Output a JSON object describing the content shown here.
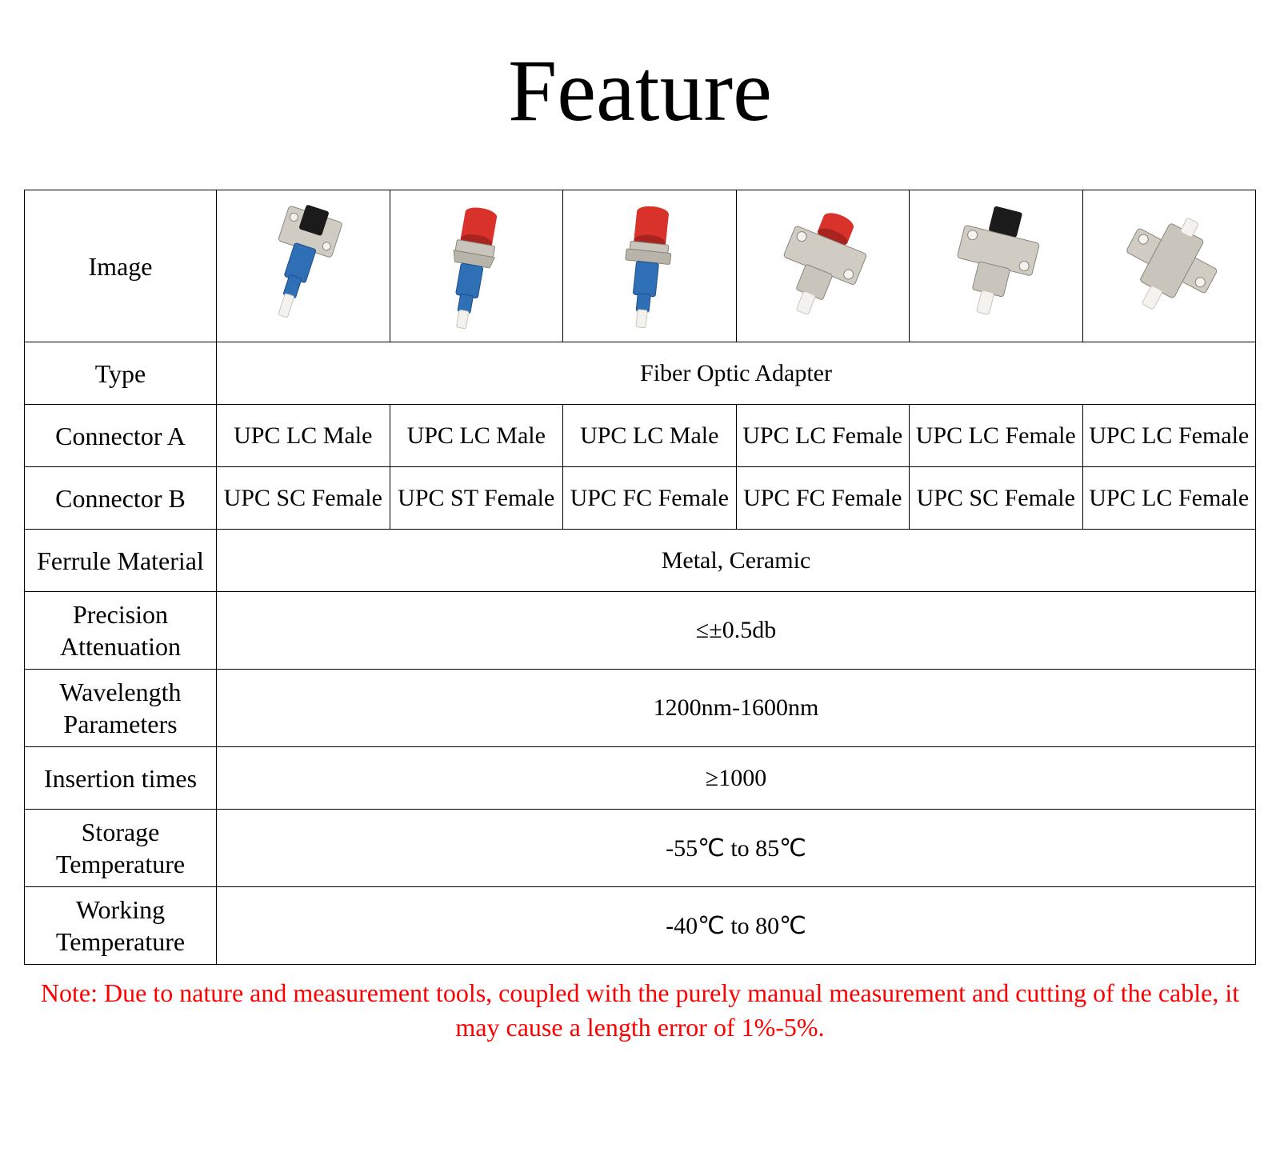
{
  "title": "Feature",
  "title_fontsize": 110,
  "title_color": "#000000",
  "table": {
    "cell_fontsize": 30,
    "label_fontsize": 32,
    "border_color": "#000000",
    "rows": {
      "image_label": "Image",
      "type": {
        "label": "Type",
        "value": "Fiber Optic Adapter"
      },
      "connector_a": {
        "label": "Connector A",
        "values": [
          "UPC LC Male",
          "UPC LC Male",
          "UPC LC Male",
          "UPC LC Female",
          "UPC LC Female",
          "UPC LC Female"
        ]
      },
      "connector_b": {
        "label": "Connector B",
        "values": [
          "UPC SC Female",
          "UPC ST Female",
          "UPC FC Female",
          "UPC FC Female",
          "UPC SC Female",
          "UPC LC Female"
        ]
      },
      "ferrule": {
        "label": "Ferrule Material",
        "value": "Metal, Ceramic"
      },
      "precision": {
        "label": "Precision\nAttenuation",
        "value": "≤±0.5db"
      },
      "wavelength": {
        "label": "Wavelength\nParameters",
        "value": "1200nm-1600nm"
      },
      "insertion": {
        "label": "Insertion times",
        "value": "≥1000"
      },
      "storage": {
        "label": "Storage Temperature",
        "value": "-55℃ to 85℃"
      },
      "working": {
        "label": "Working\nTemperature",
        "value": "-40℃ to 80℃"
      }
    }
  },
  "note": {
    "text": "Note: Due to nature and measurement tools, coupled with the purely manual measurement and cutting of the cable, it may cause a length error of 1%-5%.",
    "color": "#ff0000",
    "fontsize": 32
  },
  "images": {
    "colors": {
      "metal_light": "#d8d4cc",
      "metal_mid": "#b9b4aa",
      "metal_dark": "#8a867c",
      "blue": "#2f6fb6",
      "blue_dark": "#1e4e86",
      "red": "#d9322b",
      "red_dark": "#a8241f",
      "black": "#1b1b1b",
      "white": "#f4f2ee"
    }
  }
}
